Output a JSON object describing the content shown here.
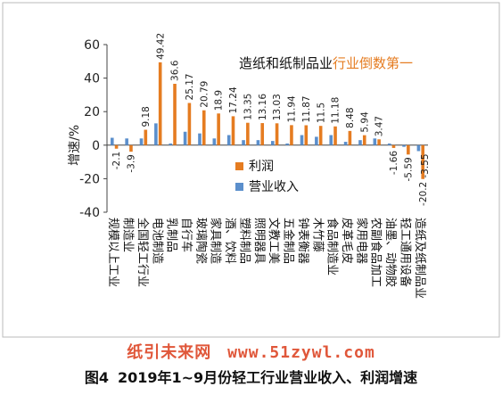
{
  "chart_data": {
    "type": "bar",
    "title": "造纸和纸制品业行业倒数第一",
    "title_parts": [
      "造纸和纸制品业",
      "行业倒数第一"
    ],
    "ylabel": "增速/%",
    "ylim": [
      -40,
      60
    ],
    "yticks": [
      "60",
      "40",
      "20",
      "0",
      "-20",
      "-40"
    ],
    "grid": false,
    "legend_position": "center-right",
    "categories": [
      "规模以上工业",
      "制造业",
      "全国轻工行业",
      "电池制造",
      "乳制品",
      "自行车",
      "玻璃陶瓷",
      "家具制造",
      "酒、饮料",
      "塑料制品",
      "照明器具",
      "文教工美",
      "五金制品",
      "钟表衡器",
      "木竹藤",
      "食品制造业",
      "皮革毛皮",
      "家用电器",
      "农副食品加工",
      "油墨、动物胶",
      "轻工通用设备",
      "造纸及纸制品业"
    ],
    "series": [
      {
        "name": "利润",
        "color": "#e57c21",
        "values": [
          -2.1,
          -3.9,
          9.18,
          49.42,
          36.6,
          25.17,
          20.79,
          18.9,
          17.24,
          13.35,
          13.16,
          13.03,
          11.94,
          11.87,
          11.5,
          11.18,
          8.48,
          5.94,
          3.47,
          -1.66,
          -5.59,
          -20.2
        ],
        "labels": [
          "-2.1",
          "-3.9",
          "9.18",
          "49.42",
          "36.6",
          "25.17",
          "20.79",
          "18.9",
          "17.24",
          "13.35",
          "13.16",
          "13.03",
          "11.94",
          "11.87",
          "11.5",
          "11.18",
          "8.48",
          "5.94",
          "3.47",
          "-1.66",
          "-5.59",
          "-20.2"
        ]
      },
      {
        "name": "营业收入",
        "color": "#5b8fcc",
        "values": [
          4.4,
          4.0,
          4.0,
          13.0,
          1.0,
          8.0,
          7.0,
          4.0,
          6.0,
          3.0,
          3.0,
          2.5,
          1.0,
          6.0,
          5.0,
          6.0,
          2.0,
          3.0,
          4.0,
          1.0,
          -1.0,
          -3.55
        ],
        "labels": [
          "",
          "",
          "",
          "",
          "",
          "",
          "",
          "",
          "",
          "",
          "",
          "",
          "",
          "",
          "",
          "",
          "",
          "",
          "",
          "",
          "",
          "-3.55"
        ]
      }
    ]
  },
  "watermark": [
    "纸引未来网",
    "www.51zywl.com"
  ],
  "caption": {
    "label": "图4",
    "text": "2019年1~9月份轻工行业营业收入、利润增速"
  }
}
